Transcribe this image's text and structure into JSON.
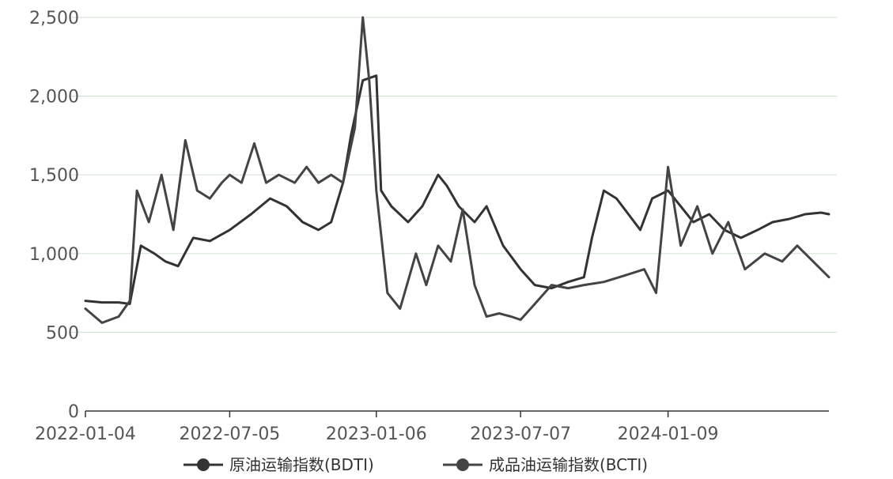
{
  "chart_data": {
    "type": "line",
    "title": "",
    "xlabel": "",
    "ylabel": "",
    "ylim": [
      0,
      2500
    ],
    "yticks": [
      0,
      500,
      1000,
      1500,
      2000,
      2500
    ],
    "ytick_labels": [
      "0",
      "500",
      "1,000",
      "1,500",
      "2,000",
      "2,500"
    ],
    "xlim": [
      "2022-01-04",
      "2024-07-30"
    ],
    "xticks": [
      "2022-01-04",
      "2022-07-05",
      "2023-01-06",
      "2023-07-07",
      "2024-01-09"
    ],
    "grid": true,
    "legend_position": "bottom",
    "series": [
      {
        "name": "原油运输指数(BDTI)",
        "color": "#333333",
        "points": [
          [
            "2022-01-04",
            700
          ],
          [
            "2022-01-25",
            690
          ],
          [
            "2022-02-15",
            690
          ],
          [
            "2022-03-01",
            680
          ],
          [
            "2022-03-15",
            1050
          ],
          [
            "2022-04-01",
            1000
          ],
          [
            "2022-04-15",
            950
          ],
          [
            "2022-05-01",
            920
          ],
          [
            "2022-05-20",
            1100
          ],
          [
            "2022-06-10",
            1080
          ],
          [
            "2022-07-05",
            1150
          ],
          [
            "2022-08-01",
            1250
          ],
          [
            "2022-08-25",
            1350
          ],
          [
            "2022-09-15",
            1300
          ],
          [
            "2022-10-05",
            1200
          ],
          [
            "2022-10-25",
            1150
          ],
          [
            "2022-11-10",
            1200
          ],
          [
            "2022-11-25",
            1450
          ],
          [
            "2022-12-05",
            1750
          ],
          [
            "2022-12-20",
            2100
          ],
          [
            "2023-01-06",
            2130
          ],
          [
            "2023-01-12",
            1400
          ],
          [
            "2023-01-25",
            1300
          ],
          [
            "2023-02-15",
            1200
          ],
          [
            "2023-03-05",
            1300
          ],
          [
            "2023-03-25",
            1500
          ],
          [
            "2023-04-05",
            1430
          ],
          [
            "2023-04-20",
            1300
          ],
          [
            "2023-05-10",
            1200
          ],
          [
            "2023-05-25",
            1300
          ],
          [
            "2023-06-15",
            1050
          ],
          [
            "2023-07-07",
            900
          ],
          [
            "2023-07-25",
            800
          ],
          [
            "2023-08-15",
            780
          ],
          [
            "2023-09-05",
            820
          ],
          [
            "2023-09-25",
            850
          ],
          [
            "2023-10-05",
            1100
          ],
          [
            "2023-10-20",
            1400
          ],
          [
            "2023-11-05",
            1350
          ],
          [
            "2023-11-20",
            1250
          ],
          [
            "2023-12-05",
            1150
          ],
          [
            "2023-12-20",
            1350
          ],
          [
            "2024-01-09",
            1400
          ],
          [
            "2024-01-25",
            1300
          ],
          [
            "2024-02-10",
            1200
          ],
          [
            "2024-03-01",
            1250
          ],
          [
            "2024-03-20",
            1150
          ],
          [
            "2024-04-10",
            1100
          ],
          [
            "2024-05-01",
            1150
          ],
          [
            "2024-05-20",
            1200
          ],
          [
            "2024-06-10",
            1220
          ],
          [
            "2024-06-30",
            1250
          ],
          [
            "2024-07-20",
            1260
          ],
          [
            "2024-07-30",
            1250
          ]
        ]
      },
      {
        "name": "成品油运输指数(BCTI)",
        "color": "#444444",
        "points": [
          [
            "2022-01-04",
            650
          ],
          [
            "2022-01-25",
            560
          ],
          [
            "2022-02-15",
            600
          ],
          [
            "2022-03-01",
            700
          ],
          [
            "2022-03-10",
            1400
          ],
          [
            "2022-03-25",
            1200
          ],
          [
            "2022-04-10",
            1500
          ],
          [
            "2022-04-25",
            1150
          ],
          [
            "2022-05-10",
            1720
          ],
          [
            "2022-05-25",
            1400
          ],
          [
            "2022-06-10",
            1350
          ],
          [
            "2022-06-25",
            1450
          ],
          [
            "2022-07-05",
            1500
          ],
          [
            "2022-07-20",
            1450
          ],
          [
            "2022-08-05",
            1700
          ],
          [
            "2022-08-20",
            1450
          ],
          [
            "2022-09-05",
            1500
          ],
          [
            "2022-09-25",
            1450
          ],
          [
            "2022-10-10",
            1550
          ],
          [
            "2022-10-25",
            1450
          ],
          [
            "2022-11-10",
            1500
          ],
          [
            "2022-11-25",
            1450
          ],
          [
            "2022-12-10",
            1800
          ],
          [
            "2022-12-20",
            2500
          ],
          [
            "2022-12-28",
            2100
          ],
          [
            "2023-01-06",
            1400
          ],
          [
            "2023-01-20",
            750
          ],
          [
            "2023-02-05",
            650
          ],
          [
            "2023-02-25",
            1000
          ],
          [
            "2023-03-10",
            800
          ],
          [
            "2023-03-25",
            1050
          ],
          [
            "2023-04-10",
            950
          ],
          [
            "2023-04-25",
            1280
          ],
          [
            "2023-05-10",
            800
          ],
          [
            "2023-05-25",
            600
          ],
          [
            "2023-06-10",
            620
          ],
          [
            "2023-06-25",
            600
          ],
          [
            "2023-07-07",
            580
          ],
          [
            "2023-07-25",
            680
          ],
          [
            "2023-08-15",
            800
          ],
          [
            "2023-09-05",
            780
          ],
          [
            "2023-09-25",
            800
          ],
          [
            "2023-10-20",
            820
          ],
          [
            "2023-11-15",
            860
          ],
          [
            "2023-12-10",
            900
          ],
          [
            "2023-12-25",
            750
          ],
          [
            "2024-01-09",
            1550
          ],
          [
            "2024-01-25",
            1050
          ],
          [
            "2024-02-15",
            1300
          ],
          [
            "2024-03-05",
            1000
          ],
          [
            "2024-03-25",
            1200
          ],
          [
            "2024-04-15",
            900
          ],
          [
            "2024-05-10",
            1000
          ],
          [
            "2024-06-01",
            950
          ],
          [
            "2024-06-20",
            1050
          ],
          [
            "2024-07-10",
            950
          ],
          [
            "2024-07-30",
            850
          ]
        ]
      }
    ]
  }
}
